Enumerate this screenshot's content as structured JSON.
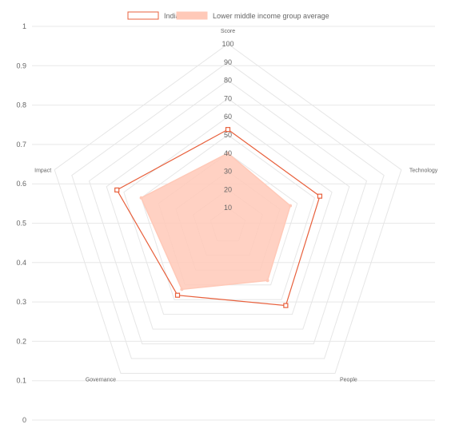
{
  "chart_data": {
    "type": "radar",
    "axes": [
      "Score",
      "Technology",
      "People",
      "Governance",
      "Impact"
    ],
    "radial_ticks": [
      "10",
      "20",
      "30",
      "40",
      "50",
      "60",
      "70",
      "80",
      "90",
      "100"
    ],
    "radial_range": [
      0,
      100
    ],
    "y_ticks": [
      "0",
      "0.1",
      "0.2",
      "0.3",
      "0.4",
      "0.5",
      "0.6",
      "0.7",
      "0.8",
      "0.9",
      "1"
    ],
    "y_range": [
      0,
      1
    ],
    "legend_position": "top",
    "grid": true,
    "series": [
      {
        "name": "India",
        "values": [
          53,
          53,
          54,
          47,
          64
        ],
        "style": "outline",
        "color": "#e8603c"
      },
      {
        "name": "Lower middle income group average",
        "values": [
          40,
          36,
          37,
          43,
          50
        ],
        "style": "filled",
        "color": "#ffc9b8"
      }
    ]
  }
}
